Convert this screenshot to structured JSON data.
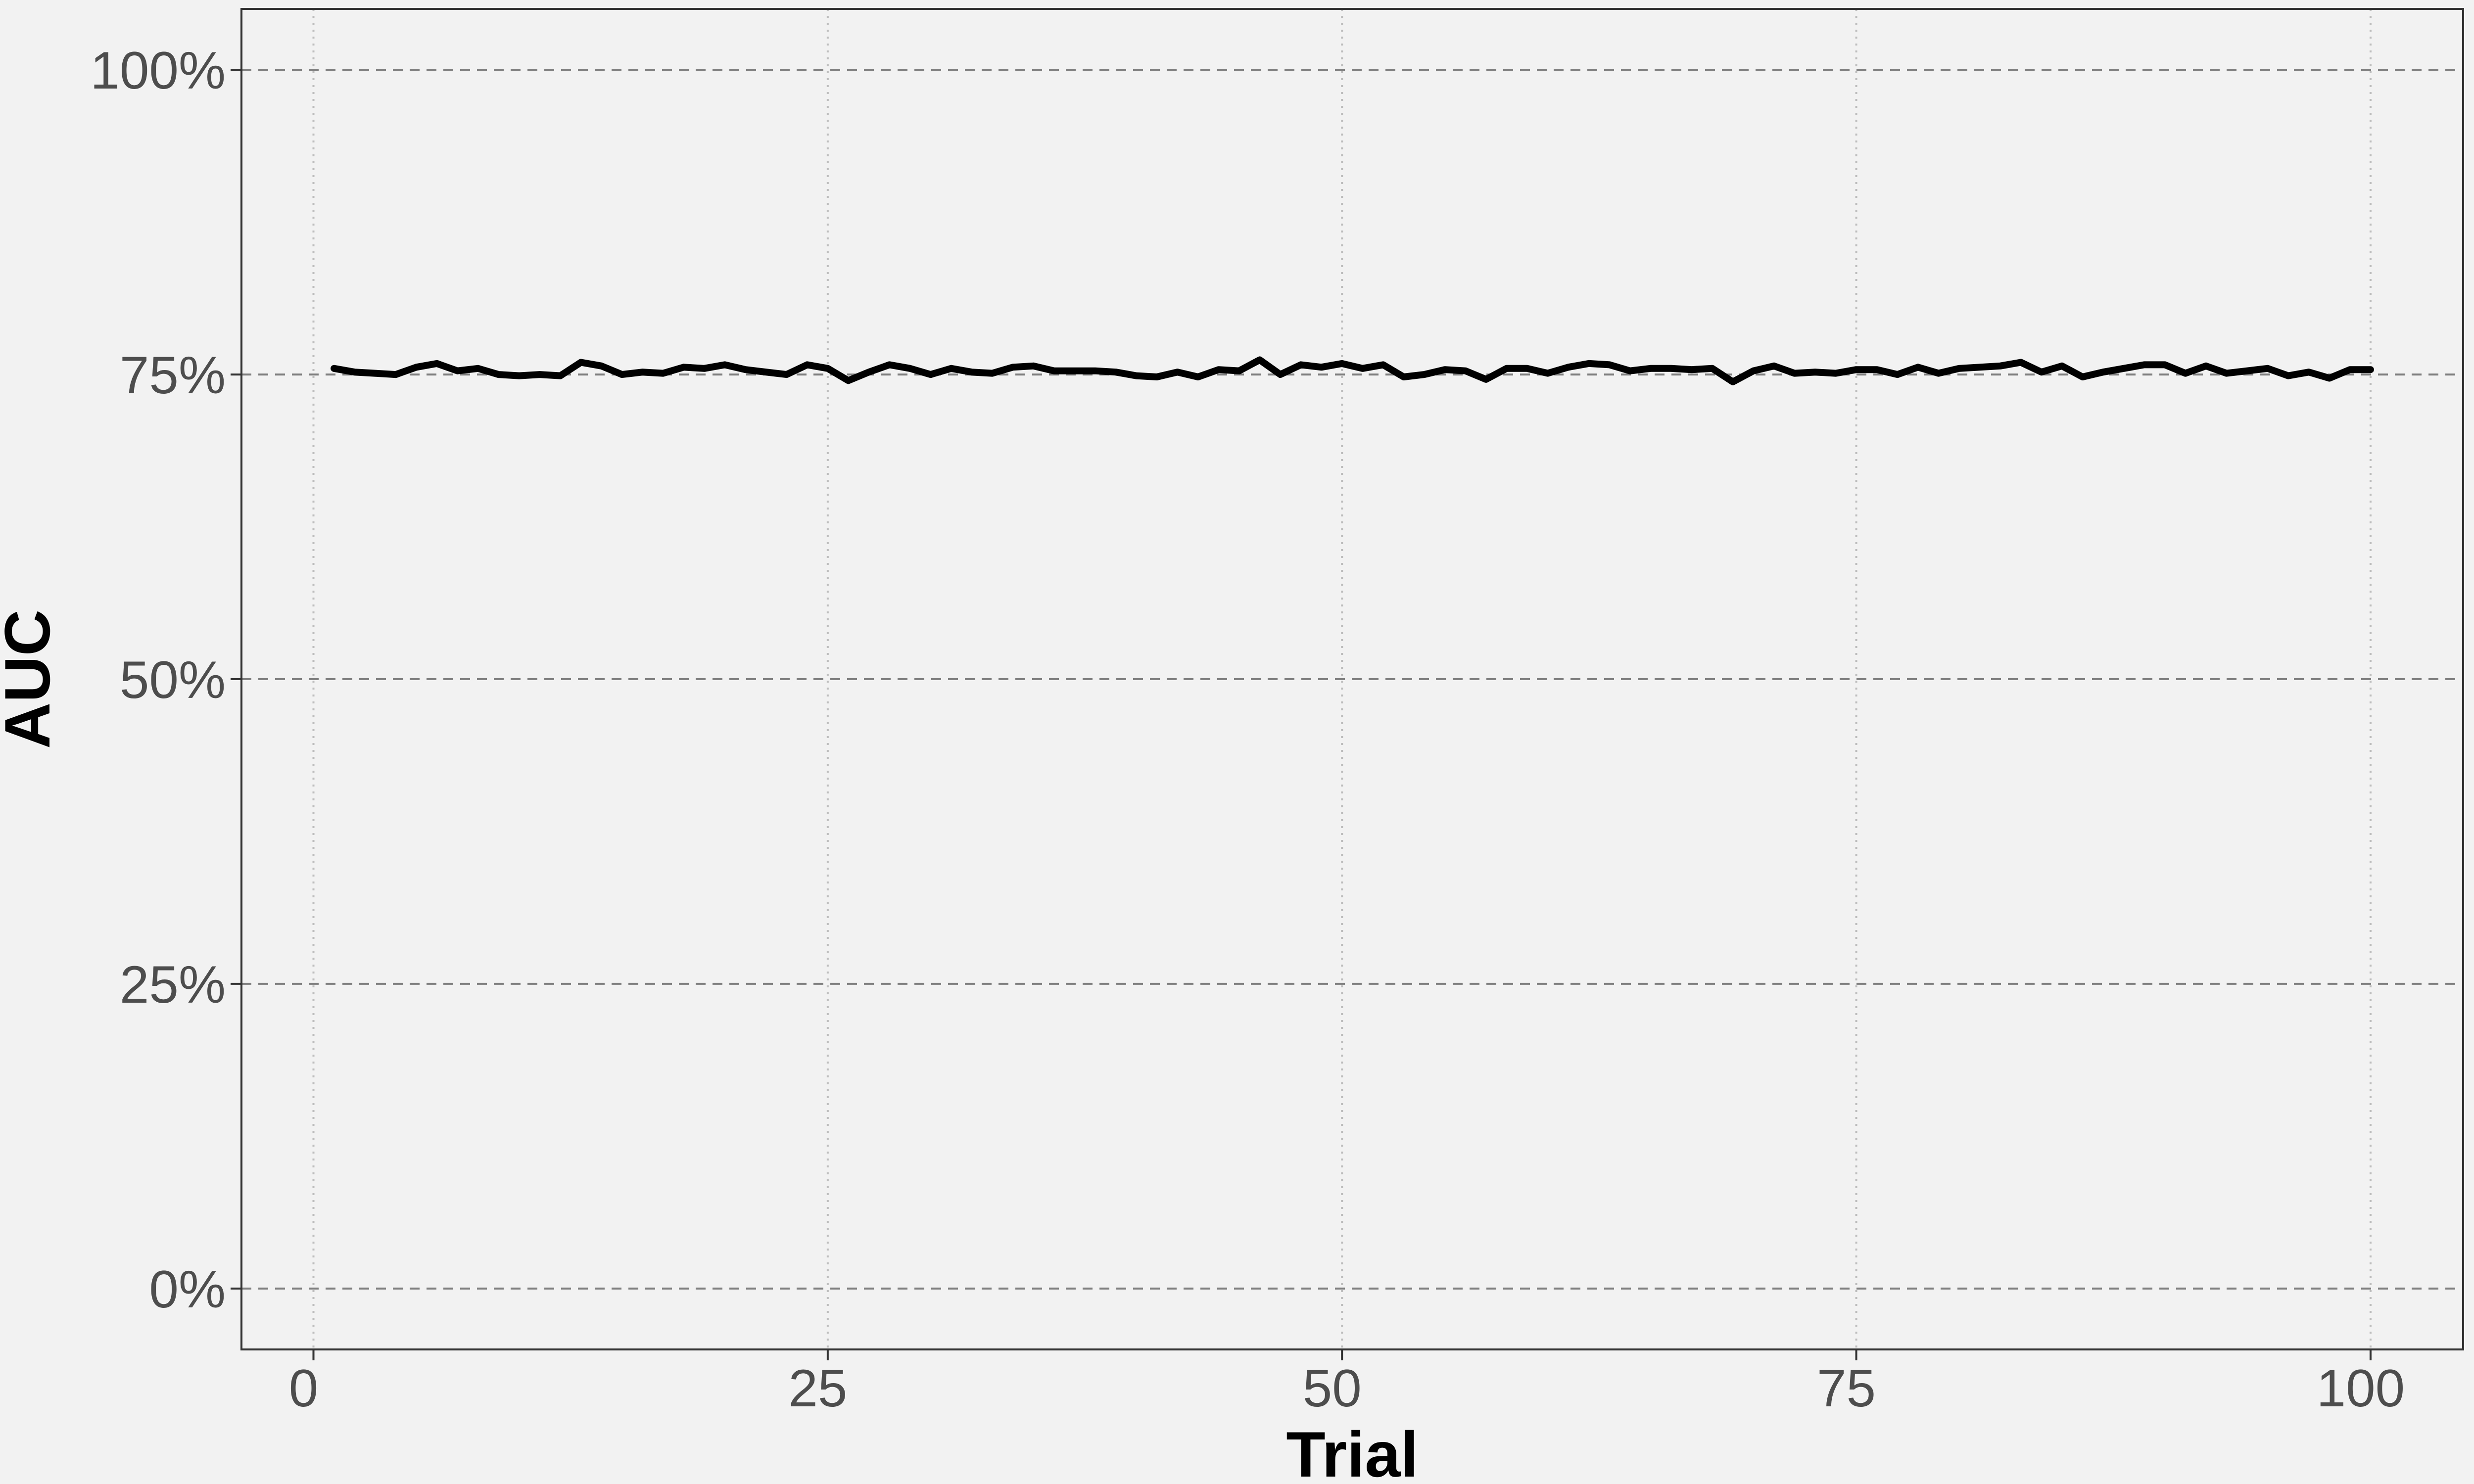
{
  "chart_data": {
    "type": "line",
    "xlabel": "Trial",
    "ylabel": "AUC",
    "xlim": [
      -3.5,
      104.5
    ],
    "ylim": [
      -0.05,
      1.05
    ],
    "x_ticks": [
      0,
      25,
      50,
      75,
      100
    ],
    "x_tick_labels": [
      "0",
      "25",
      "50",
      "75",
      "100"
    ],
    "y_ticks": [
      0,
      0.25,
      0.5,
      0.75,
      1.0
    ],
    "y_tick_labels": [
      "0%",
      "25%",
      "50%",
      "75%",
      "100%"
    ],
    "grid": true,
    "grid_style": {
      "horizontal": "dashed",
      "vertical": "dotted"
    },
    "background_color": "#f2f2f2",
    "line_color": "#000000",
    "series": [
      {
        "x": [
          1,
          2,
          3,
          4,
          5,
          6,
          7,
          8,
          9,
          10,
          11,
          12,
          13,
          14,
          15,
          16,
          17,
          18,
          19,
          20,
          21,
          22,
          23,
          24,
          25,
          26,
          27,
          28,
          29,
          30,
          31,
          32,
          33,
          34,
          35,
          36,
          37,
          38,
          39,
          40,
          41,
          42,
          43,
          44,
          45,
          46,
          47,
          48,
          49,
          50,
          51,
          52,
          53,
          54,
          55,
          56,
          57,
          58,
          59,
          60,
          61,
          62,
          63,
          64,
          65,
          66,
          67,
          68,
          69,
          70,
          71,
          72,
          73,
          74,
          75,
          76,
          77,
          78,
          79,
          80,
          81,
          82,
          83,
          84,
          85,
          86,
          87,
          88,
          89,
          90,
          91,
          92,
          93,
          94,
          95,
          96,
          97,
          98,
          99,
          100
        ],
        "values": [
          0.755,
          0.752,
          0.751,
          0.75,
          0.756,
          0.759,
          0.753,
          0.755,
          0.75,
          0.749,
          0.75,
          0.749,
          0.76,
          0.757,
          0.75,
          0.752,
          0.751,
          0.756,
          0.755,
          0.758,
          0.754,
          0.752,
          0.75,
          0.758,
          0.755,
          0.745,
          0.752,
          0.758,
          0.755,
          0.75,
          0.755,
          0.752,
          0.751,
          0.756,
          0.757,
          0.753,
          0.753,
          0.753,
          0.752,
          0.749,
          0.748,
          0.752,
          0.748,
          0.754,
          0.753,
          0.762,
          0.75,
          0.758,
          0.756,
          0.759,
          0.755,
          0.758,
          0.748,
          0.75,
          0.754,
          0.753,
          0.746,
          0.755,
          0.755,
          0.751,
          0.756,
          0.759,
          0.758,
          0.753,
          0.755,
          0.755,
          0.754,
          0.755,
          0.744,
          0.753,
          0.757,
          0.751,
          0.752,
          0.751,
          0.754,
          0.754,
          0.75,
          0.756,
          0.751,
          0.755,
          0.756,
          0.757,
          0.76,
          0.752,
          0.757,
          0.748,
          0.752,
          0.755,
          0.758,
          0.758,
          0.751,
          0.757,
          0.751,
          0.753,
          0.755,
          0.749,
          0.752,
          0.747,
          0.754,
          0.754
        ]
      }
    ]
  }
}
